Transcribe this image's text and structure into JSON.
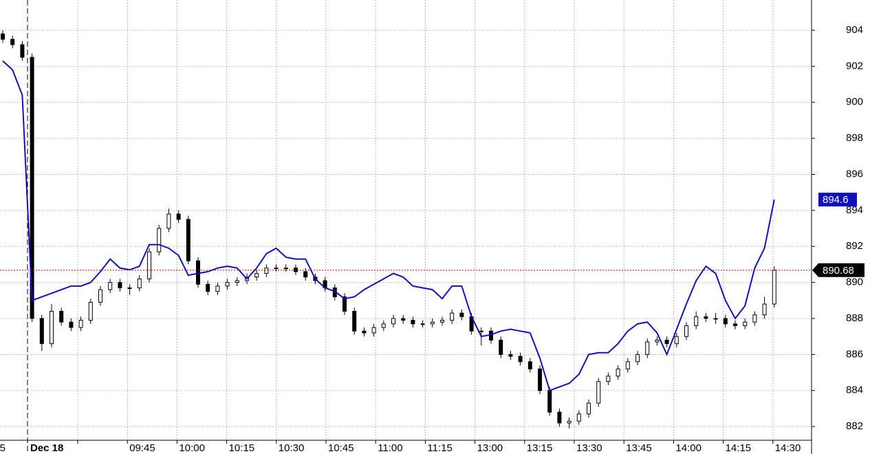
{
  "chart_data": {
    "type": "candlestick",
    "ylim": [
      881.24,
      905.68
    ],
    "yticks": [
      882,
      884,
      886,
      888,
      890,
      892,
      894,
      896,
      898,
      900,
      902,
      904
    ],
    "grid": true,
    "xtick_labels": [
      "5",
      "Dec 18",
      "09:45",
      "10:00",
      "10:15",
      "10:30",
      "10:45",
      "11:00",
      "11:15",
      "13:00",
      "13:15",
      "13:30",
      "13:45",
      "14:00",
      "14:15",
      "14:30"
    ],
    "last_price_line_color": "#cc0000",
    "series": [
      {
        "type": "candlestick",
        "up_color": "#ffffff",
        "down_color": "#000000",
        "values": [
          [
            903.8,
            904.0,
            903.3,
            903.5
          ],
          [
            903.5,
            903.7,
            903.0,
            903.2
          ],
          [
            903.2,
            903.4,
            902.3,
            902.5
          ],
          [
            902.5,
            902.7,
            887.8,
            888.0
          ],
          [
            888.0,
            888.2,
            886.2,
            886.6
          ],
          [
            886.6,
            888.8,
            886.4,
            888.4
          ],
          [
            888.4,
            888.6,
            887.6,
            887.8
          ],
          [
            887.8,
            888.0,
            887.3,
            887.5
          ],
          [
            887.5,
            888.1,
            887.3,
            887.9
          ],
          [
            887.9,
            889.1,
            887.7,
            888.9
          ],
          [
            888.9,
            889.8,
            888.7,
            889.6
          ],
          [
            889.6,
            890.2,
            889.4,
            890.0
          ],
          [
            890.0,
            890.2,
            889.5,
            889.7
          ],
          [
            889.7,
            889.9,
            889.3,
            889.7
          ],
          [
            889.7,
            890.4,
            889.5,
            890.2
          ],
          [
            890.2,
            891.9,
            890.0,
            891.7
          ],
          [
            891.7,
            893.2,
            891.5,
            893.0
          ],
          [
            893.0,
            894.1,
            892.8,
            893.8
          ],
          [
            893.8,
            894.0,
            893.3,
            893.5
          ],
          [
            893.5,
            893.7,
            891.0,
            891.2
          ],
          [
            891.2,
            891.4,
            889.7,
            889.9
          ],
          [
            889.9,
            890.1,
            889.3,
            889.5
          ],
          [
            889.5,
            890.0,
            889.3,
            889.8
          ],
          [
            889.8,
            890.2,
            889.6,
            890.0
          ],
          [
            890.0,
            890.3,
            889.8,
            890.1
          ],
          [
            890.1,
            890.5,
            889.9,
            890.3
          ],
          [
            890.3,
            890.7,
            890.1,
            890.5
          ],
          [
            890.5,
            891.0,
            890.3,
            890.8
          ],
          [
            890.8,
            891.0,
            890.6,
            890.8
          ],
          [
            890.8,
            891.0,
            890.6,
            890.8
          ],
          [
            890.8,
            891.0,
            890.4,
            890.6
          ],
          [
            890.6,
            890.8,
            890.1,
            890.3
          ],
          [
            890.3,
            890.5,
            889.9,
            890.1
          ],
          [
            890.1,
            890.3,
            889.5,
            889.7
          ],
          [
            889.7,
            889.9,
            889.0,
            889.2
          ],
          [
            889.2,
            889.4,
            888.2,
            888.4
          ],
          [
            888.4,
            888.6,
            887.1,
            887.3
          ],
          [
            887.3,
            887.5,
            887.0,
            887.2
          ],
          [
            887.2,
            887.7,
            887.0,
            887.5
          ],
          [
            887.5,
            887.9,
            887.3,
            887.7
          ],
          [
            887.7,
            888.2,
            887.5,
            888.0
          ],
          [
            888.0,
            888.2,
            887.7,
            887.9
          ],
          [
            887.9,
            888.1,
            887.5,
            887.7
          ],
          [
            887.7,
            887.9,
            887.5,
            887.7
          ],
          [
            887.7,
            888.0,
            887.5,
            887.8
          ],
          [
            887.8,
            888.1,
            887.6,
            887.9
          ],
          [
            887.9,
            888.5,
            887.7,
            888.3
          ],
          [
            888.3,
            888.5,
            887.9,
            888.1
          ],
          [
            888.1,
            888.3,
            887.1,
            887.3
          ],
          [
            887.3,
            887.5,
            886.5,
            887.3
          ],
          [
            887.3,
            887.5,
            886.6,
            886.8
          ],
          [
            886.8,
            887.0,
            885.8,
            886.0
          ],
          [
            886.0,
            886.2,
            885.7,
            885.9
          ],
          [
            885.9,
            886.1,
            885.4,
            885.6
          ],
          [
            885.6,
            885.8,
            885.0,
            885.2
          ],
          [
            885.2,
            885.4,
            883.8,
            884.0
          ],
          [
            884.0,
            884.2,
            882.6,
            882.8
          ],
          [
            882.8,
            883.0,
            882.0,
            882.2
          ],
          [
            882.2,
            882.5,
            881.9,
            882.3
          ],
          [
            882.3,
            882.9,
            882.1,
            882.7
          ],
          [
            882.7,
            883.5,
            882.5,
            883.3
          ],
          [
            883.3,
            884.7,
            883.1,
            884.5
          ],
          [
            884.5,
            885.0,
            884.3,
            884.8
          ],
          [
            884.8,
            885.4,
            884.6,
            885.2
          ],
          [
            885.2,
            885.8,
            885.0,
            885.6
          ],
          [
            885.6,
            886.2,
            885.4,
            886.0
          ],
          [
            886.0,
            886.9,
            885.8,
            886.7
          ],
          [
            886.7,
            887.0,
            886.5,
            886.8
          ],
          [
            886.8,
            887.0,
            886.4,
            886.6
          ],
          [
            886.6,
            887.2,
            886.4,
            887.0
          ],
          [
            887.0,
            887.8,
            886.8,
            887.6
          ],
          [
            887.6,
            888.4,
            887.4,
            888.1
          ],
          [
            888.1,
            888.3,
            887.8,
            888.0
          ],
          [
            888.0,
            888.3,
            887.7,
            888.0
          ],
          [
            888.0,
            888.2,
            887.5,
            887.7
          ],
          [
            887.7,
            887.9,
            887.4,
            887.6
          ],
          [
            887.6,
            888.0,
            887.4,
            887.8
          ],
          [
            887.8,
            888.4,
            887.6,
            888.2
          ],
          [
            888.2,
            889.2,
            888.0,
            888.8
          ],
          [
            888.8,
            890.9,
            888.6,
            890.68
          ]
        ]
      },
      {
        "type": "line",
        "color": "#1010c0",
        "values": [
          902.3,
          901.8,
          900.4,
          889.0,
          889.2,
          889.4,
          889.6,
          889.8,
          889.8,
          890.0,
          890.6,
          891.3,
          890.8,
          890.7,
          890.9,
          892.1,
          892.1,
          891.9,
          891.5,
          890.4,
          890.5,
          890.6,
          890.8,
          890.9,
          890.8,
          890.2,
          890.8,
          891.6,
          891.9,
          891.4,
          891.3,
          891.3,
          890.2,
          889.7,
          889.5,
          889.1,
          889.2,
          889.6,
          889.9,
          890.2,
          890.5,
          890.3,
          889.8,
          889.7,
          889.6,
          889.1,
          889.8,
          889.8,
          888.1,
          887.0,
          887.1,
          887.3,
          887.4,
          887.3,
          887.2,
          885.8,
          884.0,
          884.2,
          884.4,
          884.9,
          886.0,
          886.1,
          886.1,
          886.6,
          887.3,
          887.7,
          887.8,
          887.2,
          886.0,
          887.4,
          888.8,
          890.1,
          890.9,
          890.5,
          889.0,
          888.0,
          888.7,
          890.8,
          891.9,
          894.6
        ]
      }
    ]
  }
}
